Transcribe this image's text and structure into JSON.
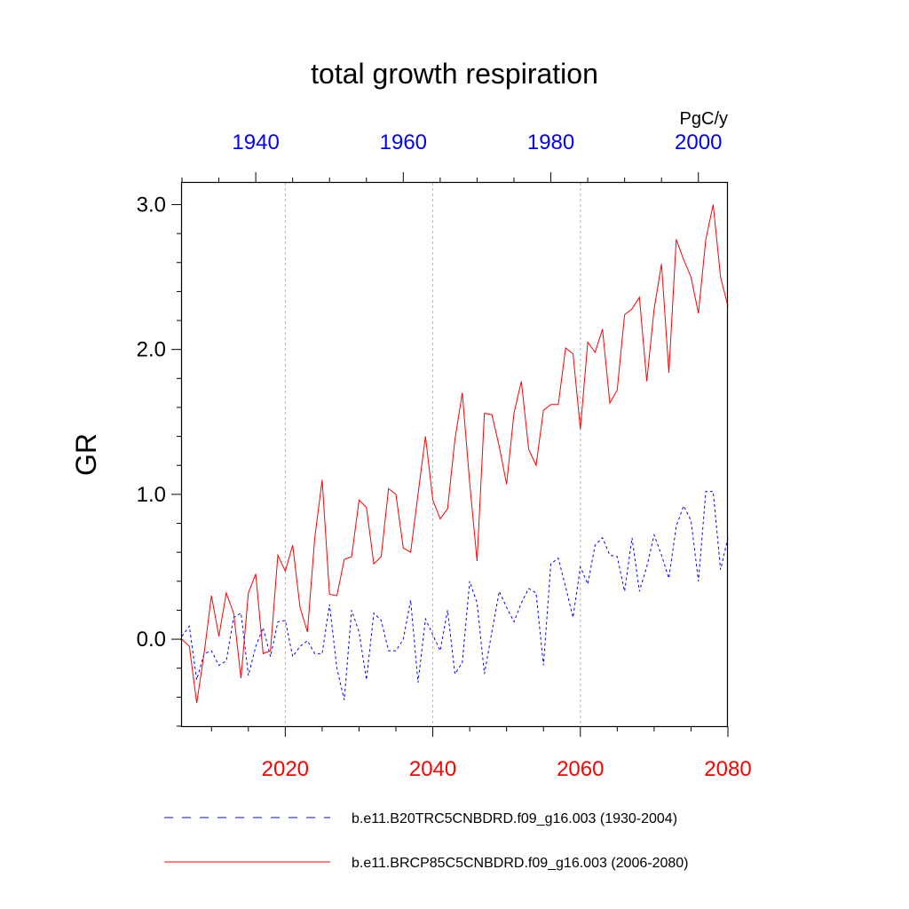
{
  "chart_data": {
    "type": "line",
    "title": "total growth respiration",
    "ylabel": "GR",
    "units": "PgC/y",
    "ylim": [
      -0.6,
      3.15
    ],
    "yticks": [
      0.0,
      1.0,
      2.0,
      3.0
    ],
    "ytick_labels": [
      "0.0",
      "1.0",
      "2.0",
      "3.0"
    ],
    "y_minor_step": 0.2,
    "bottom_axis": {
      "range": [
        2006,
        2080
      ],
      "ticks": [
        2020,
        2040,
        2060,
        2080
      ],
      "tick_labels": [
        "2020",
        "2040",
        "2060",
        "2080"
      ],
      "color": "#ff0000"
    },
    "top_axis": {
      "range": [
        1930,
        2004
      ],
      "ticks": [
        1940,
        1960,
        1980,
        2000
      ],
      "tick_labels": [
        "1940",
        "1960",
        "1980",
        "2000"
      ],
      "color": "#0000ff"
    },
    "grid_x": [
      2020,
      2040,
      2060
    ],
    "series": [
      {
        "name": "b.e11.B20TRC5CNBDRD.f09_g16.003 (1930-2004)",
        "axis": "top",
        "color": "#0000ff",
        "dash": "dashed",
        "x_start": 1930,
        "values": [
          0.02,
          0.09,
          -0.28,
          -0.1,
          -0.08,
          -0.18,
          -0.15,
          0.15,
          0.18,
          -0.25,
          -0.05,
          0.08,
          -0.12,
          0.12,
          0.13,
          -0.12,
          -0.05,
          -0.01,
          -0.1,
          -0.1,
          0.24,
          -0.2,
          -0.42,
          0.2,
          0.05,
          -0.28,
          0.18,
          0.13,
          -0.08,
          -0.08,
          -0.0,
          0.27,
          -0.3,
          0.14,
          0.03,
          -0.08,
          0.2,
          -0.24,
          -0.16,
          0.4,
          0.25,
          -0.24,
          0.05,
          0.33,
          0.22,
          0.12,
          0.25,
          0.35,
          0.32,
          -0.18,
          0.52,
          0.56,
          0.36,
          0.15,
          0.5,
          0.38,
          0.65,
          0.7,
          0.58,
          0.57,
          0.33,
          0.7,
          0.33,
          0.5,
          0.72,
          0.58,
          0.42,
          0.78,
          0.92,
          0.82,
          0.4,
          1.02,
          1.02,
          0.48,
          0.7
        ]
      },
      {
        "name": "b.e11.BRCP85C5CNBDRD.f09_g16.003 (2006-2080)",
        "axis": "bottom",
        "color": "#ff0000",
        "dash": "solid",
        "x_start": 2006,
        "values": [
          0.0,
          -0.05,
          -0.44,
          -0.1,
          0.3,
          0.02,
          0.32,
          0.18,
          -0.27,
          0.32,
          0.45,
          -0.1,
          -0.08,
          0.58,
          0.47,
          0.65,
          0.22,
          0.05,
          0.7,
          1.1,
          0.31,
          0.3,
          0.55,
          0.57,
          0.96,
          0.91,
          0.52,
          0.57,
          1.04,
          1.0,
          0.63,
          0.6,
          1.0,
          1.4,
          0.96,
          0.83,
          0.9,
          1.38,
          1.7,
          1.08,
          0.54,
          1.56,
          1.55,
          1.33,
          1.07,
          1.56,
          1.78,
          1.31,
          1.2,
          1.58,
          1.62,
          1.62,
          2.01,
          1.97,
          1.45,
          2.05,
          1.98,
          2.14,
          1.63,
          1.72,
          2.24,
          2.28,
          2.36,
          1.78,
          2.28,
          2.59,
          1.84,
          2.76,
          2.62,
          2.5,
          2.25,
          2.76,
          3.0,
          2.5,
          2.3
        ]
      }
    ],
    "legend": {
      "position": "bottom",
      "entries": [
        "b.e11.B20TRC5CNBDRD.f09_g16.003 (1930-2004)",
        "b.e11.BRCP85C5CNBDRD.f09_g16.003 (2006-2080)"
      ]
    }
  }
}
